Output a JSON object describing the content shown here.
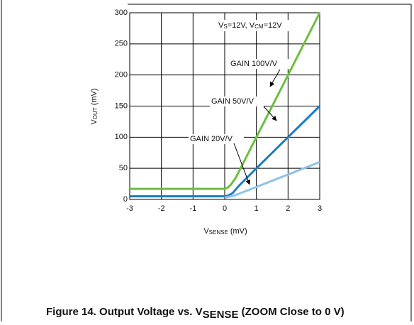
{
  "chart_data": {
    "type": "line",
    "title": [
      "Figure 14. Output Voltage vs. V",
      "SENSE",
      " (ZOOM Close to 0 V)"
    ],
    "xlabel": [
      "V",
      "SENSE",
      " (mV)"
    ],
    "ylabel": [
      "V",
      "OUT",
      " (mV)"
    ],
    "condition": [
      "V",
      "S",
      "=12V, V",
      "CM",
      "=12V"
    ],
    "xlim": [
      -3,
      3
    ],
    "xticks": [
      -3,
      -2,
      -1,
      0,
      1,
      2,
      3
    ],
    "ylim": [
      0,
      300
    ],
    "yticks": [
      0,
      50,
      100,
      150,
      200,
      250,
      300
    ],
    "grid": true,
    "series": [
      {
        "name": "GAIN 100V/V",
        "color": "#6cbf3e",
        "x": [
          -3,
          0,
          0.1,
          0.2,
          0.35,
          1,
          3
        ],
        "values": [
          17,
          17,
          19,
          24,
          35,
          100,
          300
        ]
      },
      {
        "name": "GAIN 50V/V",
        "color": "#1a7dc4",
        "x": [
          -3,
          0,
          0.1,
          0.25,
          0.45,
          1,
          3
        ],
        "values": [
          5,
          5,
          6,
          10,
          22,
          50,
          150
        ]
      },
      {
        "name": "GAIN 20V/V",
        "color": "#8cc3e6",
        "x": [
          0,
          0.3,
          1,
          3
        ],
        "values": [
          3,
          6,
          20,
          60
        ]
      }
    ]
  }
}
